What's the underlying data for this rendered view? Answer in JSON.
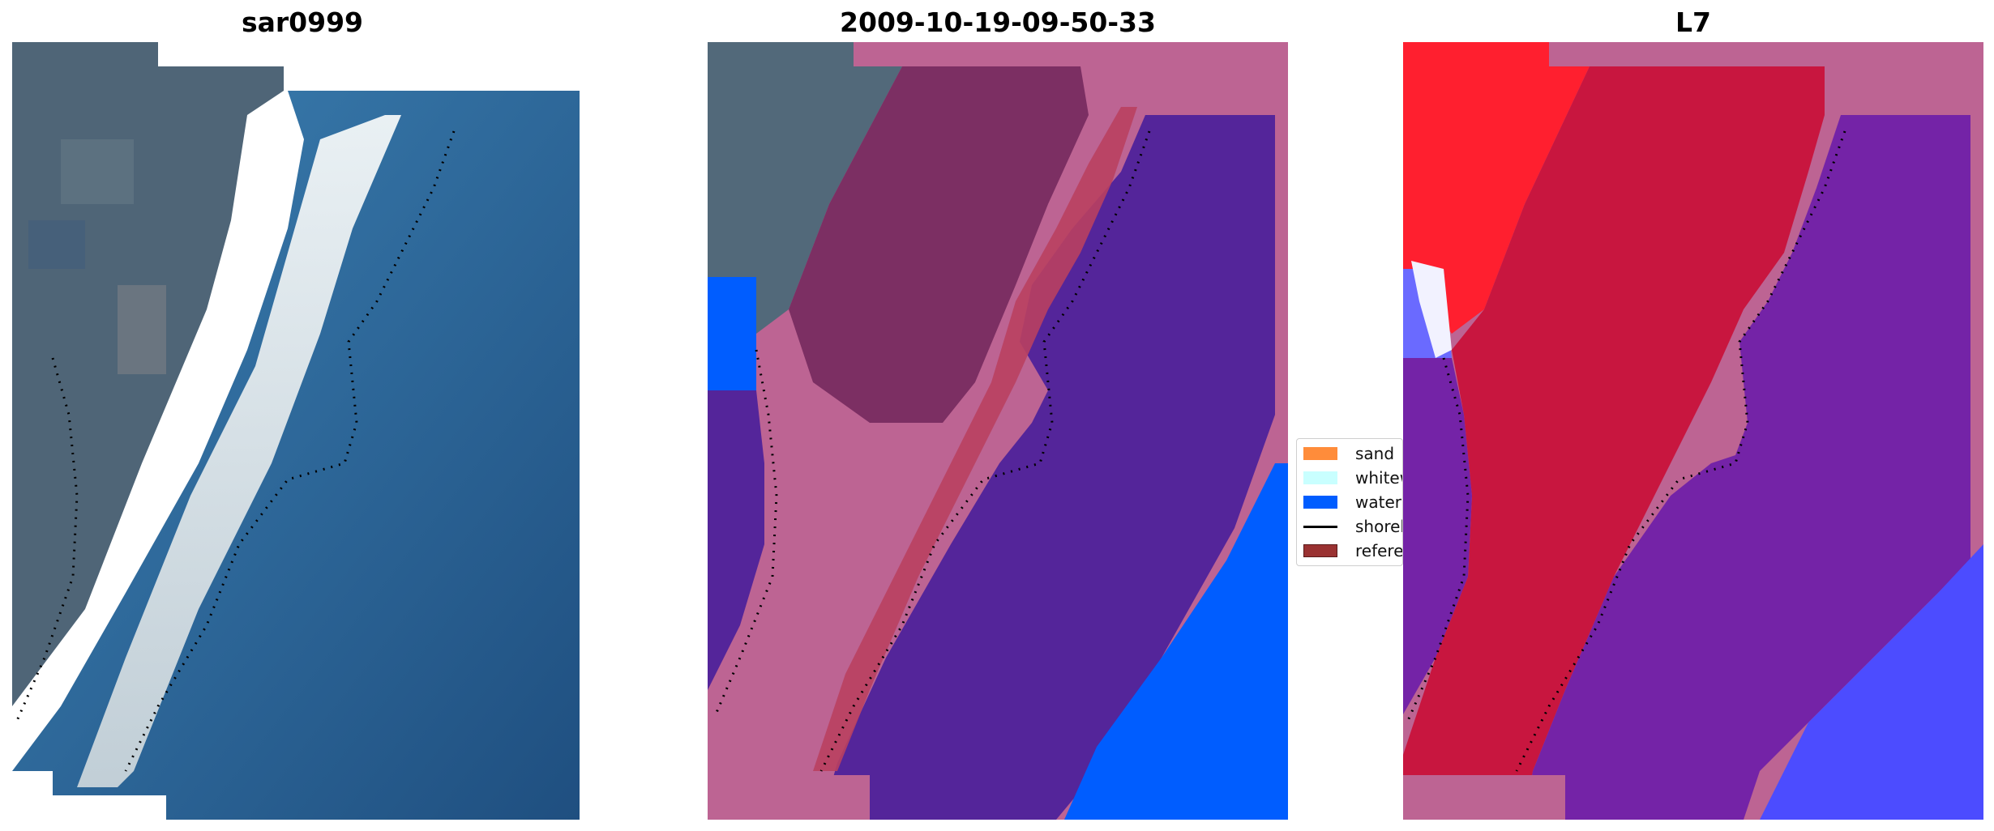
{
  "panels": [
    {
      "title": "sar0999",
      "kind": "rgb"
    },
    {
      "title": "2009-10-19-09-50-33",
      "kind": "classified"
    },
    {
      "title": "L7",
      "kind": "index"
    }
  ],
  "legend": {
    "items": [
      {
        "label": "sand",
        "color": "#ff8c3a",
        "kind": "patch"
      },
      {
        "label": "whitewater",
        "color": "#c9ffff",
        "kind": "patch"
      },
      {
        "label": "water",
        "color": "#005dff",
        "kind": "patch"
      },
      {
        "label": "shoreline",
        "color": "#000000",
        "kind": "line"
      },
      {
        "label": "reference",
        "color": "#9a3232",
        "kind": "patch"
      }
    ]
  },
  "colors": {
    "land_rgb": "#4e6476",
    "whitewater_rgb": "#e8eef2",
    "sea_rgb": "#2c6b9c",
    "mask_pink": "#bd6493",
    "land_class": "#7a3060",
    "sand_band": "#b94060",
    "water_class": "#54259a",
    "water_blue": "#005dff",
    "index_red": "#c8153e",
    "index_bright_red": "#ff1e2e",
    "index_purple": "#7623a6",
    "index_blue": "#4d4dff"
  }
}
